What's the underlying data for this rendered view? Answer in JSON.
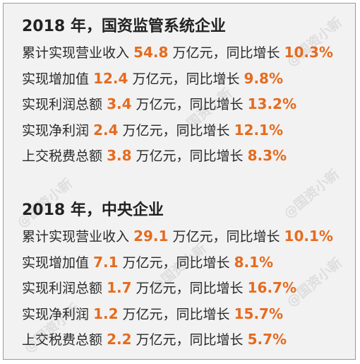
{
  "colors": {
    "accent": "#e56b1f",
    "text": "#2a2a2a",
    "background": "#f2f2f2"
  },
  "watermark": "@国资小新",
  "sections": [
    {
      "heading": "2018 年，国资监管系统企业",
      "rows": [
        {
          "label": "累计实现营业收入",
          "value": "54.8",
          "unit": "万亿元，同比增长",
          "growth": "10.3%"
        },
        {
          "label": "实现增加值",
          "value": "12.4",
          "unit": "万亿元，同比增长",
          "growth": "9.8%"
        },
        {
          "label": "实现利润总额",
          "value": "3.4",
          "unit": "万亿元，同比增长",
          "growth": "13.2%"
        },
        {
          "label": "实现净利润",
          "value": "2.4",
          "unit": "万亿元，同比增长",
          "growth": "12.1%"
        },
        {
          "label": "上交税费总额",
          "value": "3.8",
          "unit": "万亿元，同比增长",
          "growth": "8.3%"
        }
      ]
    },
    {
      "heading": "2018 年，中央企业",
      "rows": [
        {
          "label": "累计实现营业收入",
          "value": "29.1",
          "unit": "万亿元，同比增长",
          "growth": "10.1%"
        },
        {
          "label": "实现增加值",
          "value": "7.1",
          "unit": "万亿元，同比增长",
          "growth": "8.1%"
        },
        {
          "label": "实现利润总额",
          "value": "1.7",
          "unit": "万亿元，同比增长",
          "growth": "16.7%"
        },
        {
          "label": "实现净利润",
          "value": "1.2",
          "unit": "万亿元，同比增长",
          "growth": "15.7%"
        },
        {
          "label": "上交税费总额",
          "value": "2.2",
          "unit": "万亿元，同比增长",
          "growth": "5.7%"
        }
      ]
    }
  ]
}
